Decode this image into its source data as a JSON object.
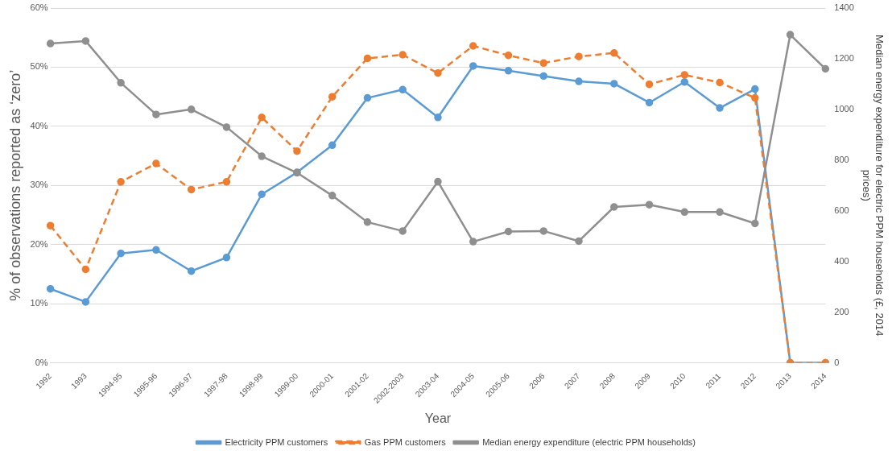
{
  "chart_data": {
    "type": "line",
    "xlabel": "Year",
    "ylabel": "% of observations reported as ‘zero’",
    "y2label": "Median energy expenditure for electric PPM households (£, 2014 prices)",
    "categories": [
      "1992",
      "1993",
      "1994-95",
      "1995-96",
      "1996-97",
      "1997-98",
      "1998-99",
      "1999-00",
      "2000-01",
      "2001-02",
      "2002-2003",
      "2003-04",
      "2004-05",
      "2005-06",
      "2006",
      "2007",
      "2008",
      "2009",
      "2010",
      "2011",
      "2012",
      "2013",
      "2014"
    ],
    "series": [
      {
        "name": "Electricity PPM customers",
        "color": "#5b9bd5",
        "line_style": "solid",
        "values": [
          12.5,
          10.3,
          18.5,
          19.1,
          15.5,
          17.8,
          28.5,
          32.2,
          36.8,
          44.8,
          46.2,
          41.5,
          50.2,
          49.4,
          48.5,
          47.6,
          47.2,
          44.0,
          47.5,
          43.1,
          46.3,
          0,
          0
        ]
      },
      {
        "name": "Gas PPM customers",
        "color": "#ed7d31",
        "line_style": "dashed",
        "values": [
          23.2,
          15.8,
          30.6,
          33.7,
          29.3,
          30.6,
          41.5,
          35.8,
          45.0,
          51.5,
          52.1,
          49.0,
          53.6,
          52.0,
          50.7,
          51.8,
          52.4,
          47.1,
          48.7,
          47.4,
          44.8,
          0,
          0
        ]
      },
      {
        "name": "Median energy expenditure (electric PPM households)",
        "color": "#8f8f8f",
        "line_style": "solid",
        "axis": "y2",
        "values": [
          1260,
          1270,
          1105,
          980,
          1000,
          930,
          815,
          750,
          660,
          555,
          520,
          715,
          478,
          518,
          520,
          480,
          615,
          624,
          595,
          595,
          550,
          1295,
          1160
        ]
      }
    ],
    "ylim": [
      0,
      60
    ],
    "yticks": [
      {
        "value": 0,
        "label": "0%"
      },
      {
        "value": 10,
        "label": "10%"
      },
      {
        "value": 20,
        "label": "20%"
      },
      {
        "value": 30,
        "label": "30%"
      },
      {
        "value": 40,
        "label": "40%"
      },
      {
        "value": 50,
        "label": "50%"
      },
      {
        "value": 60,
        "label": "60%"
      }
    ],
    "y2lim": [
      0,
      1400
    ],
    "y2ticks": [
      0,
      200,
      400,
      600,
      800,
      1000,
      1200,
      1400
    ],
    "grid": "y",
    "legend": "bottom",
    "marker": "circle"
  }
}
